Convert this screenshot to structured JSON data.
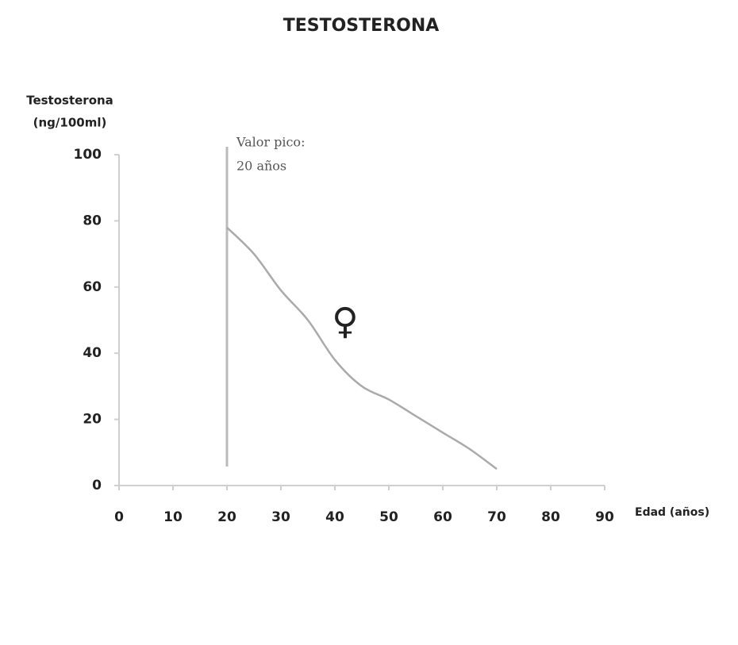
{
  "chart_data": {
    "type": "line",
    "title": "TESTOSTERONA",
    "ylabel": [
      "Testosterona",
      "(ng/100ml)"
    ],
    "xlabel": "Edad (años)",
    "x": [
      20,
      25,
      30,
      35,
      40,
      45,
      50,
      55,
      60,
      65,
      70
    ],
    "series": [
      {
        "name": "Testosterona",
        "color": "#aaaaaa",
        "values": [
          78,
          70,
          59,
          50,
          38,
          30,
          26,
          21,
          16,
          11,
          5
        ]
      }
    ],
    "xlim": [
      0,
      90
    ],
    "xticks": [
      0,
      10,
      20,
      30,
      40,
      50,
      60,
      70,
      80,
      90
    ],
    "ylim": [
      0,
      100
    ],
    "yticks": [
      0,
      20,
      40,
      60,
      80,
      100
    ],
    "vline": {
      "x": 20,
      "label": [
        "Valor pico:",
        "20 años"
      ]
    },
    "symbol": "♀"
  }
}
